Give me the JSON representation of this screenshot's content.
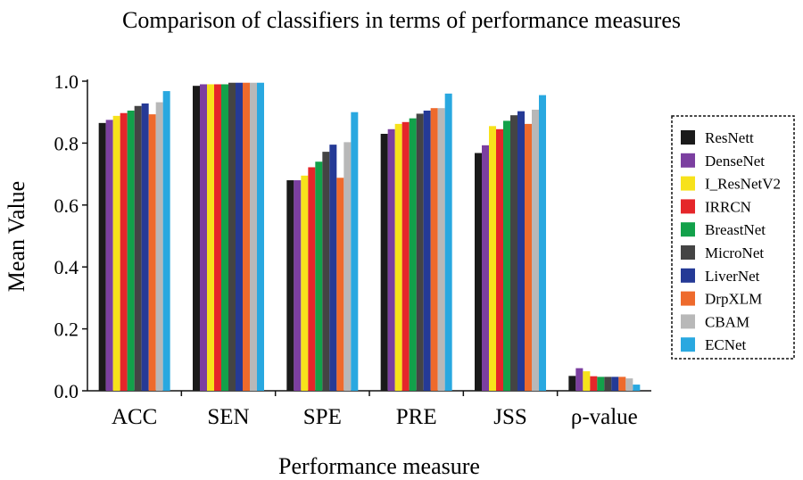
{
  "chart_data": {
    "type": "bar",
    "title": "Comparison of classifiers in terms of performance measures",
    "xlabel": "Performance measure",
    "ylabel": "Mean Value",
    "ylim": [
      0,
      1.0
    ],
    "yticks": [
      "0.0",
      "0.2",
      "0.4",
      "0.6",
      "0.8",
      "1.0"
    ],
    "grid": false,
    "legend_position": "right",
    "categories": [
      "ACC",
      "SEN",
      "SPE",
      "PRE",
      "JSS",
      "ρ-value"
    ],
    "series": [
      {
        "name": "ResNett",
        "color": "#1a1a1a",
        "values": [
          0.865,
          0.985,
          0.68,
          0.83,
          0.768,
          0.048
        ]
      },
      {
        "name": "DenseNet",
        "color": "#7b3fa0",
        "values": [
          0.875,
          0.99,
          0.68,
          0.845,
          0.793,
          0.073
        ]
      },
      {
        "name": "I_ResNetV2",
        "color": "#f7e21b",
        "values": [
          0.888,
          0.99,
          0.695,
          0.862,
          0.855,
          0.063
        ]
      },
      {
        "name": "IRRCN",
        "color": "#e5262a",
        "values": [
          0.897,
          0.99,
          0.722,
          0.868,
          0.845,
          0.047
        ]
      },
      {
        "name": "BreastNet",
        "color": "#12a14a",
        "values": [
          0.905,
          0.99,
          0.74,
          0.88,
          0.872,
          0.045
        ]
      },
      {
        "name": "MicroNet",
        "color": "#444444",
        "values": [
          0.92,
          0.995,
          0.772,
          0.895,
          0.89,
          0.045
        ]
      },
      {
        "name": "LiverNet",
        "color": "#253a96",
        "values": [
          0.928,
          0.995,
          0.795,
          0.905,
          0.903,
          0.045
        ]
      },
      {
        "name": "DrpXLM",
        "color": "#ee6a2c",
        "values": [
          0.893,
          0.995,
          0.688,
          0.913,
          0.862,
          0.045
        ]
      },
      {
        "name": "CBAM",
        "color": "#b8b8b8",
        "values": [
          0.932,
          0.995,
          0.803,
          0.913,
          0.908,
          0.04
        ]
      },
      {
        "name": "ECNet",
        "color": "#29a8e0",
        "values": [
          0.968,
          0.995,
          0.9,
          0.96,
          0.955,
          0.02
        ]
      }
    ]
  }
}
